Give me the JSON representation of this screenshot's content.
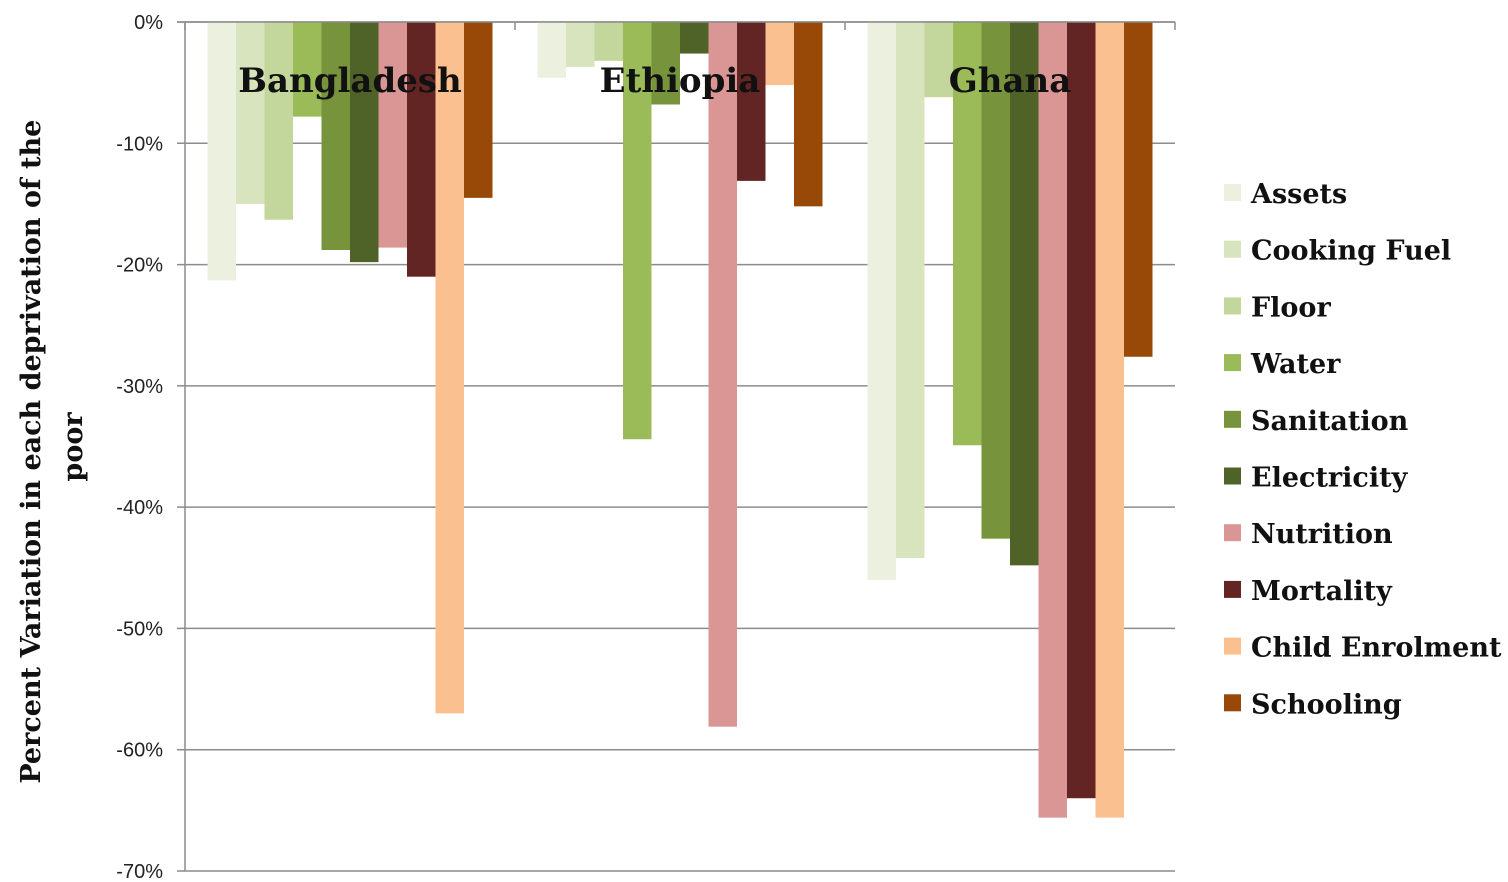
{
  "chart_data": {
    "type": "bar",
    "categories": [
      "Bangladesh",
      "Ethiopia",
      "Ghana"
    ],
    "ylabel": "Percent Variation in each deprivation  of the poor",
    "ylabel_lines": [
      "Percent Variation in each deprivation  of the",
      "poor"
    ],
    "ylim": [
      -70,
      0
    ],
    "yticks": [
      0,
      -10,
      -20,
      -30,
      -40,
      -50,
      -60,
      -70
    ],
    "ytick_labels": [
      "0%",
      "-10%",
      "-20%",
      "-30%",
      "-40%",
      "-50%",
      "-60%",
      "-70%"
    ],
    "grid": true,
    "legend_position": "right",
    "series": [
      {
        "name": "Assets",
        "color": "#ebf1de",
        "values": [
          -21.3,
          -4.6,
          -46.0
        ]
      },
      {
        "name": "Cooking Fuel",
        "color": "#d7e4bd",
        "values": [
          -15.0,
          -3.7,
          -44.2
        ]
      },
      {
        "name": "Floor",
        "color": "#c3d69b",
        "values": [
          -16.3,
          -3.2,
          -6.2
        ]
      },
      {
        "name": "Water",
        "color": "#9bbb59",
        "values": [
          -7.8,
          -34.4,
          -34.9
        ]
      },
      {
        "name": "Sanitation",
        "color": "#77933c",
        "values": [
          -18.8,
          -6.8,
          -42.6
        ]
      },
      {
        "name": "Electricity",
        "color": "#4f6228",
        "values": [
          -19.8,
          -2.6,
          -44.8
        ]
      },
      {
        "name": "Nutrition",
        "color": "#da9694",
        "values": [
          -18.6,
          -58.1,
          -65.6
        ]
      },
      {
        "name": "Mortality",
        "color": "#632523",
        "values": [
          -21.0,
          -13.1,
          -64.0
        ]
      },
      {
        "name": "Child Enrolment",
        "color": "#fac090",
        "values": [
          -57.0,
          -5.2,
          -65.6
        ]
      },
      {
        "name": "Schooling",
        "color": "#984807",
        "values": [
          -14.5,
          -15.2,
          -27.6
        ]
      }
    ]
  }
}
